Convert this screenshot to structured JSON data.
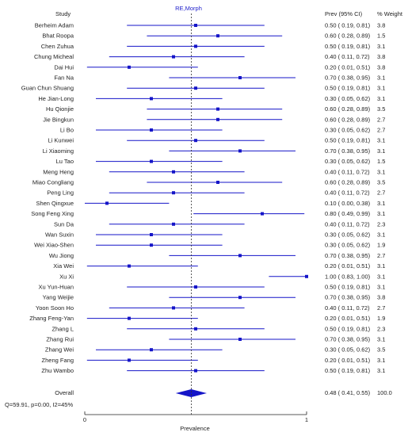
{
  "chart_data": {
    "type": "forest",
    "title": "RE,Morph",
    "xlabel": "Prevalence",
    "xlim": [
      0,
      1
    ],
    "x_ticks": [
      "0",
      "1"
    ],
    "reference_line": 0.48,
    "headers": {
      "study": "Study",
      "estimate": "Prev (95% CI)",
      "weight": "% Weight"
    },
    "colors": {
      "series": "#1515c8",
      "reference": "#333333",
      "text": "#222222"
    },
    "studies": [
      {
        "name": "Berheim Adam",
        "est": 0.5,
        "lo": 0.19,
        "hi": 0.81,
        "ci_text": "0.50 ( 0.19, 0.81)",
        "weight": "3.8"
      },
      {
        "name": "Bhat Roopa",
        "est": 0.6,
        "lo": 0.28,
        "hi": 0.89,
        "ci_text": "0.60 ( 0.28, 0.89)",
        "weight": "1.5"
      },
      {
        "name": "Chen Zuhua",
        "est": 0.5,
        "lo": 0.19,
        "hi": 0.81,
        "ci_text": "0.50 ( 0.19, 0.81)",
        "weight": "3.1"
      },
      {
        "name": "Chung Micheal",
        "est": 0.4,
        "lo": 0.11,
        "hi": 0.72,
        "ci_text": "0.40 ( 0.11, 0.72)",
        "weight": "3.8"
      },
      {
        "name": "Dai Hui",
        "est": 0.2,
        "lo": 0.01,
        "hi": 0.51,
        "ci_text": "0.20 ( 0.01, 0.51)",
        "weight": "3.8"
      },
      {
        "name": "Fan Na",
        "est": 0.7,
        "lo": 0.38,
        "hi": 0.95,
        "ci_text": "0.70 ( 0.38, 0.95)",
        "weight": "3.1"
      },
      {
        "name": "Guan Chun Shuang",
        "est": 0.5,
        "lo": 0.19,
        "hi": 0.81,
        "ci_text": "0.50 ( 0.19, 0.81)",
        "weight": "3.1"
      },
      {
        "name": "He Jian-Long",
        "est": 0.3,
        "lo": 0.05,
        "hi": 0.62,
        "ci_text": "0.30 ( 0.05, 0.62)",
        "weight": "3.1"
      },
      {
        "name": "Hu Qionjie",
        "est": 0.6,
        "lo": 0.28,
        "hi": 0.89,
        "ci_text": "0.60 ( 0.28, 0.89)",
        "weight": "3.5"
      },
      {
        "name": "Jie Bingkun",
        "est": 0.6,
        "lo": 0.28,
        "hi": 0.89,
        "ci_text": "0.60 ( 0.28, 0.89)",
        "weight": "2.7"
      },
      {
        "name": "Li Bo",
        "est": 0.3,
        "lo": 0.05,
        "hi": 0.62,
        "ci_text": "0.30 ( 0.05, 0.62)",
        "weight": "2.7"
      },
      {
        "name": "Li Kunwei",
        "est": 0.5,
        "lo": 0.19,
        "hi": 0.81,
        "ci_text": "0.50 ( 0.19, 0.81)",
        "weight": "3.1"
      },
      {
        "name": "Li Xiaoming",
        "est": 0.7,
        "lo": 0.38,
        "hi": 0.95,
        "ci_text": "0.70 ( 0.38, 0.95)",
        "weight": "3.1"
      },
      {
        "name": "Lu Tao",
        "est": 0.3,
        "lo": 0.05,
        "hi": 0.62,
        "ci_text": "0.30 ( 0.05, 0.62)",
        "weight": "1.5"
      },
      {
        "name": "Meng Heng",
        "est": 0.4,
        "lo": 0.11,
        "hi": 0.72,
        "ci_text": "0.40 ( 0.11, 0.72)",
        "weight": "3.1"
      },
      {
        "name": "Miao Congliang",
        "est": 0.6,
        "lo": 0.28,
        "hi": 0.89,
        "ci_text": "0.60 ( 0.28, 0.89)",
        "weight": "3.5"
      },
      {
        "name": "Peng Ling",
        "est": 0.4,
        "lo": 0.11,
        "hi": 0.72,
        "ci_text": "0.40 ( 0.11, 0.72)",
        "weight": "2.7"
      },
      {
        "name": "Shen Qingxue",
        "est": 0.1,
        "lo": 0.0,
        "hi": 0.38,
        "ci_text": "0.10 ( 0.00, 0.38)",
        "weight": "3.1"
      },
      {
        "name": "Song Feng Xing",
        "est": 0.8,
        "lo": 0.49,
        "hi": 0.99,
        "ci_text": "0.80 ( 0.49, 0.99)",
        "weight": "3.1"
      },
      {
        "name": "Sun Da",
        "est": 0.4,
        "lo": 0.11,
        "hi": 0.72,
        "ci_text": "0.40 ( 0.11, 0.72)",
        "weight": "2.3"
      },
      {
        "name": "Wan Suxin",
        "est": 0.3,
        "lo": 0.05,
        "hi": 0.62,
        "ci_text": "0.30 ( 0.05, 0.62)",
        "weight": "3.1"
      },
      {
        "name": "Wei Xiao-Shen",
        "est": 0.3,
        "lo": 0.05,
        "hi": 0.62,
        "ci_text": "0.30 ( 0.05, 0.62)",
        "weight": "1.9"
      },
      {
        "name": "Wu Jiong",
        "est": 0.7,
        "lo": 0.38,
        "hi": 0.95,
        "ci_text": "0.70 ( 0.38, 0.95)",
        "weight": "2.7"
      },
      {
        "name": "Xia Wei",
        "est": 0.2,
        "lo": 0.01,
        "hi": 0.51,
        "ci_text": "0.20 ( 0.01, 0.51)",
        "weight": "3.1"
      },
      {
        "name": "Xu Xi",
        "est": 1.0,
        "lo": 0.83,
        "hi": 1.0,
        "ci_text": "1.00 ( 0.83, 1.00)",
        "weight": "3.1"
      },
      {
        "name": "Xu Yun-Huan",
        "est": 0.5,
        "lo": 0.19,
        "hi": 0.81,
        "ci_text": "0.50 ( 0.19, 0.81)",
        "weight": "3.1"
      },
      {
        "name": "Yang Weijie",
        "est": 0.7,
        "lo": 0.38,
        "hi": 0.95,
        "ci_text": "0.70 ( 0.38, 0.95)",
        "weight": "3.8"
      },
      {
        "name": "Yoon Soon Ho",
        "est": 0.4,
        "lo": 0.11,
        "hi": 0.72,
        "ci_text": "0.40 ( 0.11, 0.72)",
        "weight": "2.7"
      },
      {
        "name": "Zhang Feng-Yan",
        "est": 0.2,
        "lo": 0.01,
        "hi": 0.51,
        "ci_text": "0.20 ( 0.01, 0.51)",
        "weight": "1.9"
      },
      {
        "name": "Zhang L",
        "est": 0.5,
        "lo": 0.19,
        "hi": 0.81,
        "ci_text": "0.50 ( 0.19, 0.81)",
        "weight": "2.3"
      },
      {
        "name": "Zhang Rui",
        "est": 0.7,
        "lo": 0.38,
        "hi": 0.95,
        "ci_text": "0.70 ( 0.38, 0.95)",
        "weight": "3.1"
      },
      {
        "name": "Zhang Wei",
        "est": 0.3,
        "lo": 0.05,
        "hi": 0.62,
        "ci_text": "0.30 ( 0.05, 0.62)",
        "weight": "3.5"
      },
      {
        "name": "Zheng Fang",
        "est": 0.2,
        "lo": 0.01,
        "hi": 0.51,
        "ci_text": "0.20 ( 0.01, 0.51)",
        "weight": "3.1"
      },
      {
        "name": "Zhu Wambo",
        "est": 0.5,
        "lo": 0.19,
        "hi": 0.81,
        "ci_text": "0.50 ( 0.19, 0.81)",
        "weight": "3.1"
      }
    ],
    "overall": {
      "name": "Overall",
      "est": 0.48,
      "lo": 0.41,
      "hi": 0.55,
      "ci_text": "0.48 ( 0.41, 0.55)",
      "weight": "100.0"
    },
    "heterogeneity": "Q=59.91, p=0.00, I2=45%"
  }
}
